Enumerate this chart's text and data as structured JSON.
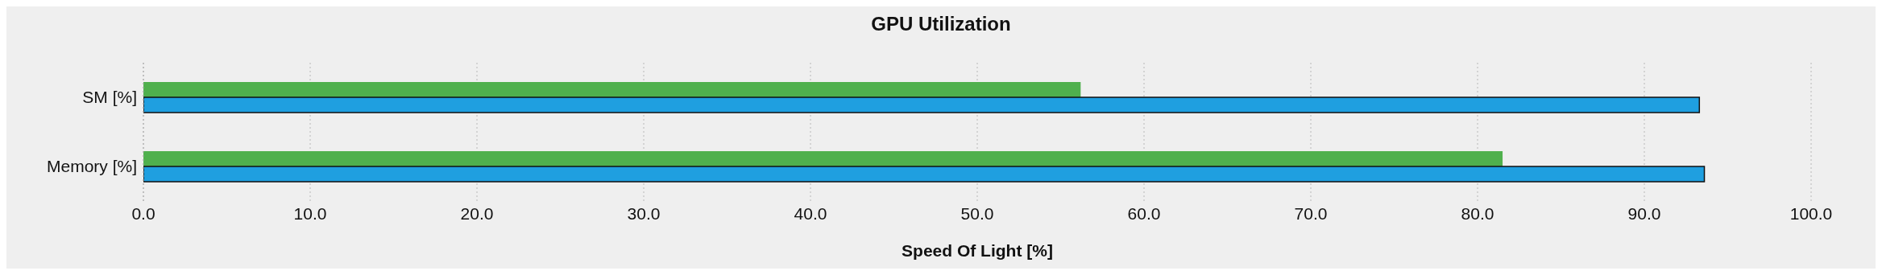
{
  "chart_data": {
    "type": "bar",
    "orientation": "horizontal",
    "title": "GPU Utilization",
    "xlabel": "Speed Of Light [%]",
    "categories": [
      "SM [%]",
      "Memory [%]"
    ],
    "series": [
      {
        "color": "#4fb04d",
        "values": [
          56.2,
          81.5
        ]
      },
      {
        "color": "#1f9fe0",
        "values": [
          93.3,
          93.6
        ]
      }
    ],
    "xlim": [
      0,
      100
    ],
    "xticks": [
      {
        "value": 0,
        "label": "0.0"
      },
      {
        "value": 10,
        "label": "10.0"
      },
      {
        "value": 20,
        "label": "20.0"
      },
      {
        "value": 30,
        "label": "30.0"
      },
      {
        "value": 40,
        "label": "40.0"
      },
      {
        "value": 50,
        "label": "50.0"
      },
      {
        "value": 60,
        "label": "60.0"
      },
      {
        "value": 70,
        "label": "70.0"
      },
      {
        "value": 80,
        "label": "80.0"
      },
      {
        "value": 90,
        "label": "90.0"
      },
      {
        "value": 100,
        "label": "100.0"
      }
    ],
    "grid": "x"
  }
}
